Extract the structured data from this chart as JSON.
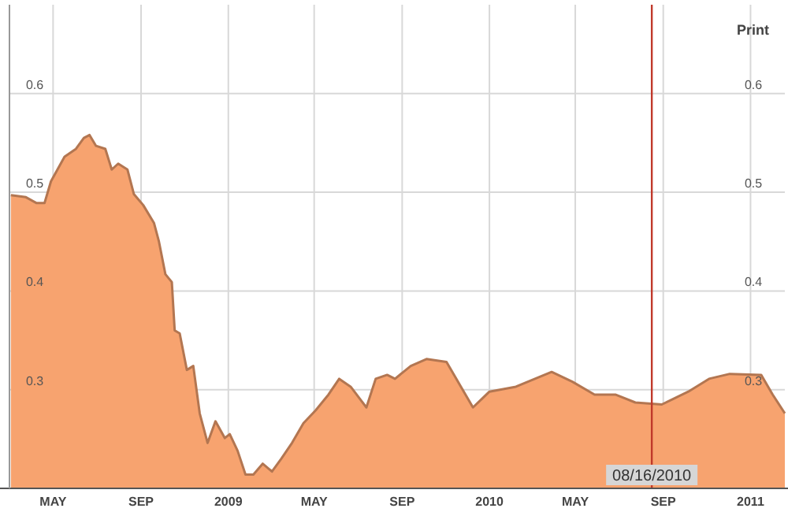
{
  "chart_data": {
    "type": "area",
    "x": [
      "2008-03-03",
      "2008-03-24",
      "2008-04-08",
      "2008-04-19",
      "2008-04-28",
      "2008-05-17",
      "2008-06-02",
      "2008-06-13",
      "2008-06-21",
      "2008-06-30",
      "2008-07-13",
      "2008-07-22",
      "2008-07-31",
      "2008-08-13",
      "2008-08-22",
      "2008-09-04",
      "2008-09-19",
      "2008-09-26",
      "2008-10-05",
      "2008-10-14",
      "2008-10-18",
      "2008-10-25",
      "2008-11-04",
      "2008-11-13",
      "2008-11-22",
      "2008-12-03",
      "2008-12-14",
      "2008-12-27",
      "2009-01-03",
      "2009-01-14",
      "2009-01-25",
      "2009-02-05",
      "2009-02-18",
      "2009-03-03",
      "2009-03-16",
      "2009-03-31",
      "2009-04-16",
      "2009-05-03",
      "2009-05-21",
      "2009-06-05",
      "2009-06-21",
      "2009-07-13",
      "2009-07-26",
      "2009-08-11",
      "2009-08-22",
      "2009-09-13",
      "2009-10-05",
      "2009-11-02",
      "2009-12-09",
      "2010-01-01",
      "2010-02-07",
      "2010-03-29",
      "2010-04-27",
      "2010-05-28",
      "2010-06-26",
      "2010-07-24",
      "2010-08-30",
      "2010-10-06",
      "2010-11-04",
      "2010-12-03",
      "2011-01-16",
      "2011-02-01",
      "2011-02-18"
    ],
    "series": [
      {
        "color": "#f7a36f",
        "values": [
          0.497,
          0.495,
          0.489,
          0.489,
          0.511,
          0.536,
          0.544,
          0.555,
          0.558,
          0.547,
          0.544,
          0.523,
          0.529,
          0.523,
          0.498,
          0.487,
          0.469,
          0.45,
          0.417,
          0.409,
          0.36,
          0.357,
          0.32,
          0.324,
          0.276,
          0.246,
          0.268,
          0.251,
          0.255,
          0.238,
          0.214,
          0.214,
          0.225,
          0.217,
          0.23,
          0.246,
          0.266,
          0.279,
          0.295,
          0.311,
          0.303,
          0.282,
          0.311,
          0.315,
          0.311,
          0.324,
          0.331,
          0.328,
          0.282,
          0.298,
          0.303,
          0.318,
          0.308,
          0.295,
          0.295,
          0.287,
          0.285,
          0.298,
          0.311,
          0.316,
          0.315,
          0.295,
          0.276
        ]
      }
    ],
    "xlim": [
      "2008-03-01",
      "2011-02-18"
    ],
    "xticks": [
      {
        "value": "2008-05-01",
        "label": "MAY"
      },
      {
        "value": "2008-09-01",
        "label": "SEP"
      },
      {
        "value": "2009-01-01",
        "label": "2009"
      },
      {
        "value": "2009-05-01",
        "label": "MAY"
      },
      {
        "value": "2009-09-01",
        "label": "SEP"
      },
      {
        "value": "2010-01-01",
        "label": "2010"
      },
      {
        "value": "2010-05-01",
        "label": "MAY"
      },
      {
        "value": "2010-09-01",
        "label": "SEP"
      },
      {
        "value": "2011-01-01",
        "label": "2011"
      }
    ],
    "ylim": [
      0.2,
      0.69
    ],
    "yticks": [
      0.3,
      0.4,
      0.5,
      0.6
    ],
    "y2lim": [
      0.2,
      0.69
    ],
    "y2ticks": [
      0.3,
      0.4,
      0.5,
      0.6
    ],
    "grid": true,
    "ref_lines": [
      {
        "axis": "x",
        "value": "2010-08-16",
        "label": "08/16/2010",
        "color": "#c0392b"
      }
    ],
    "annotations": [
      "Print"
    ]
  }
}
